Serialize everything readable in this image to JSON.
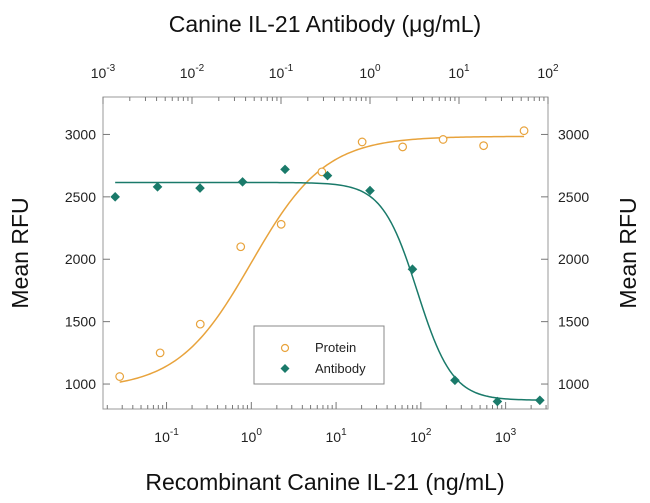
{
  "chart_data": {
    "type": "scatter",
    "title": "Canine IL-21 Antibody (μg/mL)",
    "xlabel": "Recombinant Canine IL-21 (ng/mL)",
    "ylabel": "Mean RFU",
    "ylabel_right": "Mean RFU",
    "x_scale": "log",
    "x_top_scale": "log",
    "xlim": [
      0.0178,
      3162
    ],
    "x_top_lim": [
      0.001,
      100
    ],
    "ylim": [
      800,
      3300
    ],
    "y_ticks": [
      1000,
      1500,
      2000,
      2500,
      3000
    ],
    "x_ticks": [
      {
        "base": "10",
        "exp": "-1",
        "value": 0.1
      },
      {
        "base": "10",
        "exp": "0",
        "value": 1
      },
      {
        "base": "10",
        "exp": "1",
        "value": 10
      },
      {
        "base": "10",
        "exp": "2",
        "value": 100
      },
      {
        "base": "10",
        "exp": "3",
        "value": 1000
      }
    ],
    "x_top_ticks": [
      {
        "base": "10",
        "exp": "-3",
        "value": 0.001
      },
      {
        "base": "10",
        "exp": "-2",
        "value": 0.01
      },
      {
        "base": "10",
        "exp": "-1",
        "value": 0.1
      },
      {
        "base": "10",
        "exp": "0",
        "value": 1
      },
      {
        "base": "10",
        "exp": "1",
        "value": 10
      },
      {
        "base": "10",
        "exp": "2",
        "value": 100
      }
    ],
    "grid": false,
    "legend_position": "bottom-center",
    "series": [
      {
        "name": "Protein",
        "axis": "bottom",
        "marker": "open-circle",
        "color": "#e8a33c",
        "x": [
          0.028,
          0.084,
          0.25,
          0.75,
          2.25,
          6.8,
          20.3,
          61,
          183,
          550,
          1650
        ],
        "y": [
          1060,
          1250,
          1480,
          2100,
          2280,
          2700,
          2940,
          2900,
          2960,
          2910,
          3030
        ],
        "fit": {
          "bottom": 960,
          "top": 2985,
          "ec50": 1.0,
          "hill": 1.0
        }
      },
      {
        "name": "Antibody",
        "axis": "top",
        "marker": "diamond",
        "color": "#1a7a6a",
        "x": [
          0.00137,
          0.0041,
          0.0123,
          0.037,
          0.111,
          0.333,
          1.0,
          3.0,
          9.0,
          27.0,
          81.0
        ],
        "y": [
          2500,
          2580,
          2570,
          2620,
          2720,
          2670,
          2550,
          1920,
          1030,
          860,
          870
        ],
        "fit": {
          "bottom": 870,
          "top": 2615,
          "ec50": 3.4,
          "hill": 2.2
        }
      }
    ]
  }
}
